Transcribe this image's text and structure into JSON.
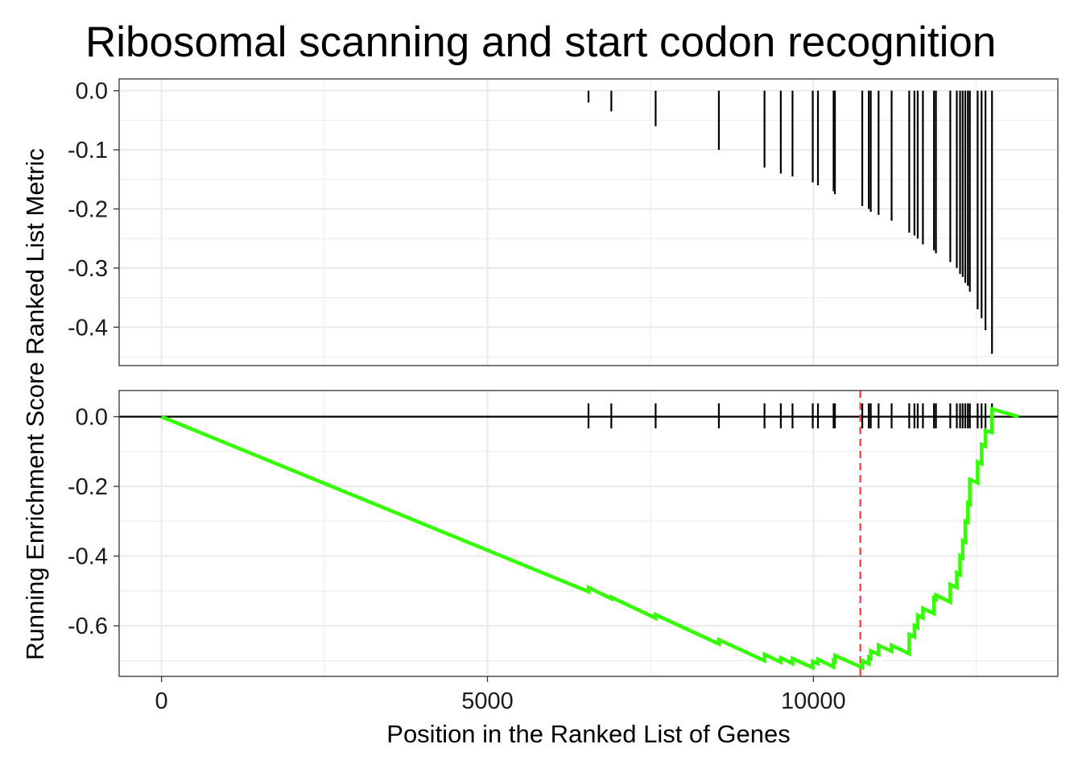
{
  "chart_data": {
    "type": "line",
    "title": "Ribosomal scanning and start codon recognition",
    "xlabel": "Position in the Ranked List of Genes",
    "ylabel": "Running Enrichment Score Ranked List Metric",
    "colors": {
      "es_line": "#33ff00",
      "peak_line": "#f0383e",
      "ticks": "#000000",
      "zero_line": "#000000"
    },
    "xlim": [
      -650,
      13750
    ],
    "x_ticks": [
      0,
      5000,
      10000
    ],
    "x_tick_labels": [
      "0",
      "5000",
      "10000"
    ],
    "grid": true,
    "panels": [
      {
        "name": "Ranked List Metric",
        "type": "bar",
        "ylim": [
          -0.465,
          0.02
        ],
        "y_ticks": [
          0.0,
          -0.1,
          -0.2,
          -0.3,
          -0.4
        ],
        "y_tick_labels": [
          "0.0",
          "-0.1",
          "-0.2",
          "-0.3",
          "-0.4"
        ],
        "x": [
          6550,
          6900,
          7580,
          8550,
          9250,
          9500,
          9680,
          9990,
          10070,
          10310,
          10330,
          10750,
          10850,
          10880,
          11000,
          11200,
          11470,
          11550,
          11600,
          11680,
          11850,
          11880,
          12100,
          12200,
          12250,
          12290,
          12330,
          12370,
          12400,
          12520,
          12580,
          12640,
          12740
        ],
        "values": [
          -0.02,
          -0.035,
          -0.06,
          -0.1,
          -0.13,
          -0.14,
          -0.145,
          -0.155,
          -0.16,
          -0.17,
          -0.175,
          -0.195,
          -0.2,
          -0.205,
          -0.21,
          -0.22,
          -0.24,
          -0.245,
          -0.25,
          -0.26,
          -0.27,
          -0.275,
          -0.29,
          -0.3,
          -0.31,
          -0.315,
          -0.325,
          -0.33,
          -0.34,
          -0.37,
          -0.385,
          -0.405,
          -0.445
        ]
      },
      {
        "name": "Running Enrichment Score",
        "type": "line",
        "ylim": [
          -0.745,
          0.075
        ],
        "y_ticks": [
          0.0,
          -0.2,
          -0.4,
          -0.6
        ],
        "y_tick_labels": [
          "0.0",
          "-0.2",
          "-0.4",
          "-0.6"
        ],
        "x": [
          0,
          6550,
          6550,
          6900,
          6900,
          7580,
          7580,
          8550,
          8550,
          9250,
          9250,
          9500,
          9500,
          9680,
          9680,
          9990,
          9990,
          10070,
          10070,
          10310,
          10310,
          10330,
          10330,
          10750,
          10750,
          10850,
          10850,
          10880,
          10880,
          11000,
          11000,
          11200,
          11200,
          11470,
          11470,
          11550,
          11550,
          11600,
          11600,
          11680,
          11680,
          11850,
          11850,
          11880,
          11880,
          12100,
          12100,
          12200,
          12200,
          12250,
          12250,
          12290,
          12290,
          12330,
          12330,
          12370,
          12370,
          12400,
          12400,
          12520,
          12520,
          12580,
          12580,
          12640,
          12640,
          12740,
          12740,
          13150
        ],
        "values": [
          0.0,
          -0.502,
          -0.49,
          -0.522,
          -0.518,
          -0.578,
          -0.568,
          -0.652,
          -0.64,
          -0.7,
          -0.682,
          -0.704,
          -0.692,
          -0.708,
          -0.694,
          -0.72,
          -0.702,
          -0.708,
          -0.696,
          -0.718,
          -0.7,
          -0.702,
          -0.685,
          -0.72,
          -0.7,
          -0.709,
          -0.69,
          -0.693,
          -0.672,
          -0.682,
          -0.656,
          -0.673,
          -0.656,
          -0.68,
          -0.625,
          -0.632,
          -0.6,
          -0.605,
          -0.57,
          -0.577,
          -0.55,
          -0.565,
          -0.52,
          -0.523,
          -0.512,
          -0.532,
          -0.482,
          -0.49,
          -0.448,
          -0.453,
          -0.4,
          -0.405,
          -0.356,
          -0.36,
          -0.3,
          -0.303,
          -0.248,
          -0.251,
          -0.18,
          -0.19,
          -0.13,
          -0.135,
          -0.08,
          -0.085,
          -0.04,
          -0.045,
          0.022,
          0.0
        ]
      }
    ],
    "hit_positions": [
      6550,
      6900,
      7580,
      8550,
      9250,
      9500,
      9680,
      9990,
      10070,
      10310,
      10330,
      10750,
      10850,
      10880,
      11000,
      11200,
      11470,
      11550,
      11600,
      11680,
      11850,
      11880,
      12100,
      12200,
      12250,
      12290,
      12330,
      12370,
      12400,
      12520,
      12580,
      12640,
      12740
    ],
    "peak_position": 10720
  }
}
